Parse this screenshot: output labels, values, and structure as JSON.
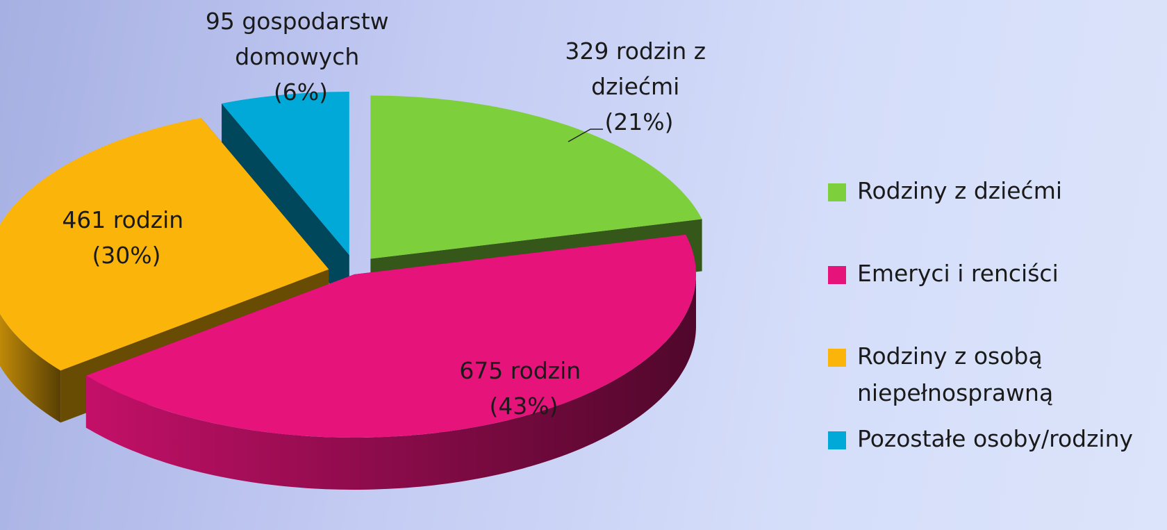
{
  "chart_data": {
    "type": "pie",
    "categories": [
      "Rodziny z dziećmi",
      "Emeryci i renciści",
      "Rodziny z osobą niepełnosprawną",
      "Pozostałe osoby/rodziny"
    ],
    "values": [
      329,
      675,
      461,
      95
    ],
    "value_labels": [
      "329 rodzin z dziećmi (21%)",
      "675 rodzin (43%)",
      "461 rodzin (30%)",
      "95 gospodarstw domowych (6%)"
    ],
    "colors": [
      "#7dcf3c",
      "#e5137a",
      "#fbb40a",
      "#00a9d8"
    ],
    "legend": "right"
  }
}
